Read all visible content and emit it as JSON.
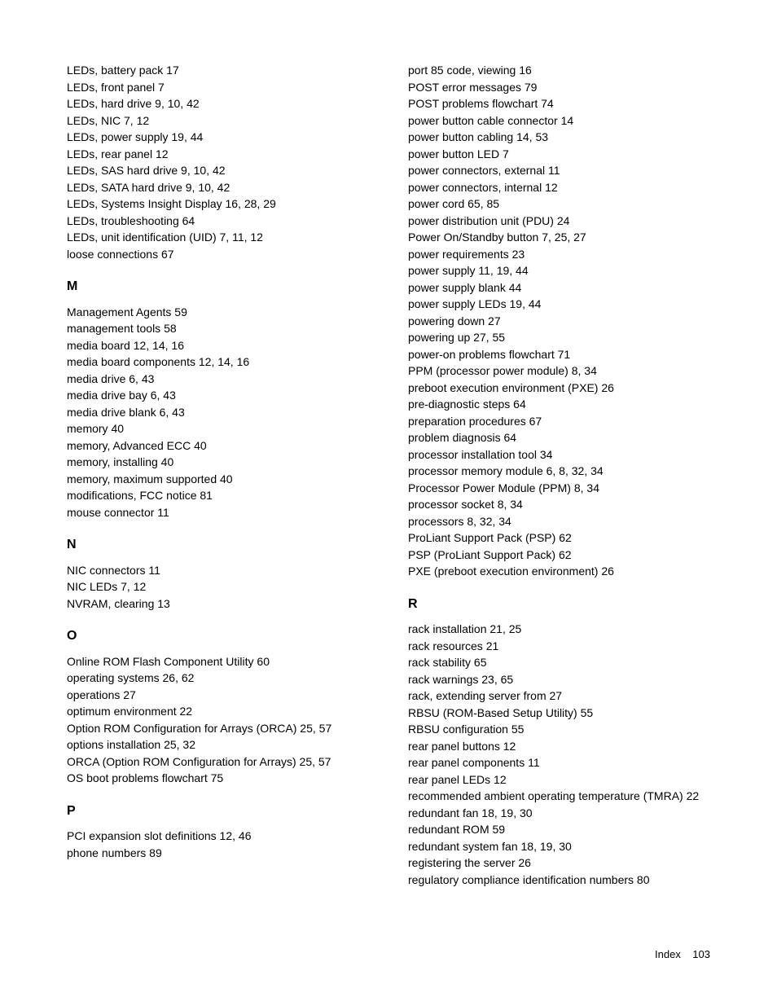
{
  "footer": {
    "label": "Index",
    "page": "103"
  },
  "left": {
    "top": [
      "LEDs, battery pack   17",
      "LEDs, front panel   7",
      "LEDs, hard drive   9, 10, 42",
      "LEDs, NIC   7, 12",
      "LEDs, power supply   19, 44",
      "LEDs, rear panel   12",
      "LEDs, SAS hard drive   9, 10, 42",
      "LEDs, SATA hard drive   9, 10, 42",
      "LEDs, Systems Insight Display   16, 28, 29",
      "LEDs, troubleshooting   64",
      "LEDs, unit identification (UID)   7, 11, 12",
      "loose connections   67"
    ],
    "M_head": "M",
    "M": [
      "Management Agents   59",
      "management tools   58",
      "media board   12, 14, 16",
      "media board components   12, 14, 16",
      "media drive   6, 43",
      "media drive bay   6, 43",
      "media drive blank   6, 43",
      "memory   40",
      "memory, Advanced ECC   40",
      "memory, installing   40",
      "memory, maximum supported   40",
      "modifications, FCC notice   81",
      "mouse connector   11"
    ],
    "N_head": "N",
    "N": [
      "NIC connectors   11",
      "NIC LEDs   7, 12",
      "NVRAM, clearing   13"
    ],
    "O_head": "O",
    "O": [
      "Online ROM Flash Component Utility   60",
      "operating systems   26, 62",
      "operations   27",
      "optimum environment   22",
      "Option ROM Configuration for Arrays (ORCA)   25, 57",
      "options installation   25, 32",
      "ORCA (Option ROM Configuration for Arrays)   25, 57",
      "OS boot problems flowchart   75"
    ],
    "P_head": "P",
    "P": [
      "PCI expansion slot definitions   12, 46",
      "phone numbers   89"
    ]
  },
  "right": {
    "top": [
      "port 85 code, viewing   16",
      "POST error messages   79",
      "POST problems flowchart   74",
      "power button cable connector   14",
      "power button cabling   14, 53",
      "power button LED   7",
      "power connectors, external   11",
      "power connectors, internal   12",
      "power cord   65, 85",
      "power distribution unit (PDU)   24",
      "Power On/Standby button   7, 25, 27",
      "power requirements   23",
      "power supply   11, 19, 44",
      "power supply blank   44",
      "power supply LEDs   19, 44",
      "powering down   27",
      "powering up   27, 55",
      "power-on problems flowchart   71",
      "PPM (processor power module)   8, 34",
      "preboot execution environment (PXE)   26",
      "pre-diagnostic steps   64",
      "preparation procedures   67",
      "problem diagnosis   64",
      "processor installation tool   34",
      "processor memory module   6, 8, 32, 34",
      "Processor Power Module (PPM)   8, 34",
      "processor socket   8, 34",
      "processors   8, 32, 34",
      "ProLiant Support Pack (PSP)   62",
      "PSP (ProLiant Support Pack)   62",
      "PXE (preboot execution environment)   26"
    ],
    "R_head": "R",
    "R": [
      "rack installation   21, 25",
      "rack resources   21",
      "rack stability   65",
      "rack warnings   23, 65",
      "rack, extending server from   27",
      "RBSU (ROM-Based Setup Utility)   55",
      "RBSU configuration   55",
      "rear panel buttons   12",
      "rear panel components   11",
      "rear panel LEDs   12",
      "recommended ambient operating temperature (TMRA)   22",
      "redundant fan   18, 19, 30",
      "redundant ROM   59",
      "redundant system fan   18, 19, 30",
      "registering the server   26",
      "regulatory compliance identification numbers   80"
    ]
  }
}
